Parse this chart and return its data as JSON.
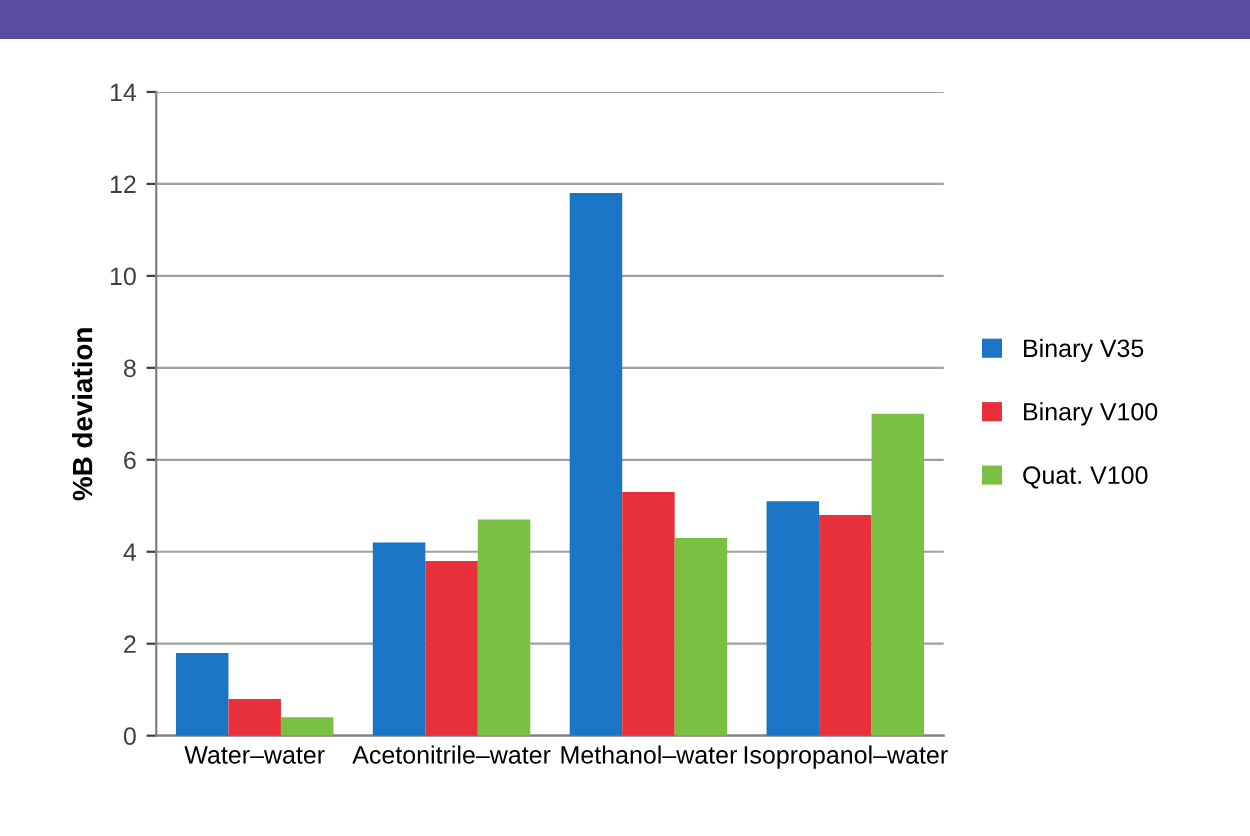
{
  "chart_data": {
    "type": "bar",
    "ylabel": "%B deviation",
    "categories": [
      "Water–water",
      "Acetonitrile–water",
      "Methanol–water",
      "Isopropanol–water"
    ],
    "series": [
      {
        "name": "Binary V35",
        "color": "#1a75c4",
        "values": [
          1.8,
          4.2,
          11.8,
          5.1
        ]
      },
      {
        "name": "Binary V100",
        "color": "#e8303a",
        "values": [
          0.8,
          3.8,
          5.3,
          4.8
        ]
      },
      {
        "name": "Quat. V100",
        "color": "#7ac143",
        "values": [
          0.4,
          4.7,
          4.3,
          7.0
        ]
      }
    ],
    "ylim": [
      0,
      14
    ],
    "yticks": [
      0,
      2,
      4,
      6,
      8,
      10,
      12,
      14
    ],
    "grid": "y",
    "legend": "right"
  }
}
